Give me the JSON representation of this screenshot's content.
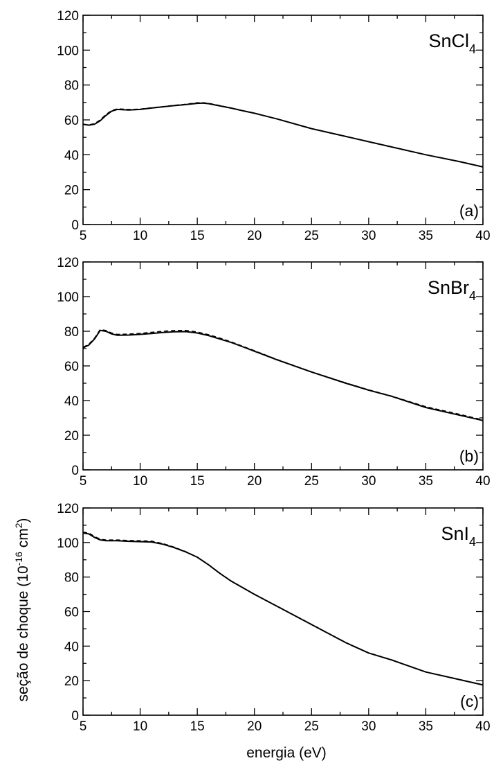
{
  "figure": {
    "xlabel": "energia (eV)",
    "ylabel_main": "seção de choque (10",
    "ylabel_sup1": "-16",
    "ylabel_mid": " cm",
    "ylabel_sup2": "2",
    "ylabel_end": ")"
  },
  "chart_data": [
    {
      "type": "line",
      "name_base": "SnCl",
      "name_sub": "4",
      "tag": "(a)",
      "xlim": [
        5,
        40
      ],
      "ylim": [
        0,
        120
      ],
      "x_ticks": [
        "5",
        "10",
        "15",
        "20",
        "25",
        "30",
        "35",
        "40"
      ],
      "y_ticks": [
        "0",
        "20",
        "40",
        "60",
        "80",
        "100",
        "120"
      ],
      "series": [
        {
          "style": "solid",
          "points": [
            [
              5,
              57.5
            ],
            [
              5.5,
              57
            ],
            [
              6,
              57.5
            ],
            [
              6.5,
              59.5
            ],
            [
              7,
              62.5
            ],
            [
              7.5,
              65
            ],
            [
              8,
              66
            ],
            [
              9,
              65.7
            ],
            [
              10,
              66
            ],
            [
              11,
              66.8
            ],
            [
              12,
              67.5
            ],
            [
              13,
              68.2
            ],
            [
              14,
              68.8
            ],
            [
              15,
              69.5
            ],
            [
              15.5,
              69.6
            ],
            [
              16,
              69.3
            ],
            [
              17,
              68
            ],
            [
              18,
              66.7
            ],
            [
              19,
              65.2
            ],
            [
              20,
              63.8
            ],
            [
              22,
              60.5
            ],
            [
              25,
              55
            ],
            [
              28,
              50.5
            ],
            [
              30,
              47.5
            ],
            [
              32,
              44.5
            ],
            [
              35,
              40
            ],
            [
              38,
              36
            ],
            [
              40,
              33
            ]
          ]
        },
        {
          "style": "dashed",
          "points": [
            [
              5,
              57.3
            ],
            [
              5.5,
              57.2
            ],
            [
              6,
              57.8
            ],
            [
              6.5,
              60
            ],
            [
              7,
              63
            ],
            [
              7.5,
              65.4
            ],
            [
              8,
              66.3
            ],
            [
              9,
              66
            ],
            [
              10,
              66.2
            ],
            [
              11,
              67
            ],
            [
              12,
              67.6
            ],
            [
              13,
              68.4
            ],
            [
              14,
              69
            ],
            [
              15,
              69.8
            ],
            [
              15.5,
              69.9
            ],
            [
              16,
              69.5
            ],
            [
              17,
              68.2
            ],
            [
              18,
              66.8
            ],
            [
              19,
              65.3
            ],
            [
              20,
              63.9
            ],
            [
              22,
              60.5
            ],
            [
              25,
              55
            ],
            [
              28,
              50.5
            ],
            [
              30,
              47.5
            ],
            [
              32,
              44.5
            ],
            [
              35,
              40
            ],
            [
              38,
              36
            ],
            [
              40,
              33
            ]
          ]
        }
      ]
    },
    {
      "type": "line",
      "name_base": "SnBr",
      "name_sub": "4",
      "tag": "(b)",
      "xlim": [
        5,
        40
      ],
      "ylim": [
        0,
        120
      ],
      "x_ticks": [
        "5",
        "10",
        "15",
        "20",
        "25",
        "30",
        "35",
        "40"
      ],
      "y_ticks": [
        "0",
        "20",
        "40",
        "60",
        "80",
        "100",
        "120"
      ],
      "series": [
        {
          "style": "solid",
          "points": [
            [
              5,
              70.5
            ],
            [
              5.5,
              72
            ],
            [
              6,
              75.5
            ],
            [
              6.5,
              80.5
            ],
            [
              7,
              80
            ],
            [
              7.5,
              78.5
            ],
            [
              8,
              77.7
            ],
            [
              9,
              77.8
            ],
            [
              10,
              78.2
            ],
            [
              11,
              78.7
            ],
            [
              12,
              79.3
            ],
            [
              13,
              79.7
            ],
            [
              14,
              79.8
            ],
            [
              15,
              79
            ],
            [
              16,
              77.5
            ],
            [
              17,
              75.5
            ],
            [
              18,
              73.5
            ],
            [
              19,
              71
            ],
            [
              20,
              68.5
            ],
            [
              22,
              63.5
            ],
            [
              25,
              56.5
            ],
            [
              28,
              50
            ],
            [
              30,
              46
            ],
            [
              32,
              42.5
            ],
            [
              35,
              36
            ],
            [
              38,
              31.5
            ],
            [
              40,
              28.5
            ]
          ]
        },
        {
          "style": "dashed",
          "points": [
            [
              5,
              70.8
            ],
            [
              5.5,
              72.5
            ],
            [
              6,
              76
            ],
            [
              6.5,
              81
            ],
            [
              7,
              80.5
            ],
            [
              7.5,
              79
            ],
            [
              8,
              78.2
            ],
            [
              9,
              78.4
            ],
            [
              10,
              78.8
            ],
            [
              11,
              79.4
            ],
            [
              12,
              80
            ],
            [
              13,
              80.5
            ],
            [
              14,
              80.5
            ],
            [
              15,
              79.6
            ],
            [
              16,
              78
            ],
            [
              17,
              76
            ],
            [
              18,
              73.8
            ],
            [
              19,
              71.3
            ],
            [
              20,
              68.8
            ],
            [
              22,
              63.7
            ],
            [
              25,
              56.6
            ],
            [
              28,
              50.2
            ],
            [
              30,
              46.2
            ],
            [
              32,
              42.6
            ],
            [
              35,
              36.5
            ],
            [
              38,
              32
            ],
            [
              40,
              28.8
            ]
          ]
        }
      ]
    },
    {
      "type": "line",
      "name_base": "SnI",
      "name_sub": "4",
      "tag": "(c)",
      "xlim": [
        5,
        40
      ],
      "ylim": [
        0,
        120
      ],
      "x_ticks": [
        "5",
        "10",
        "15",
        "20",
        "25",
        "30",
        "35",
        "40"
      ],
      "y_ticks": [
        "0",
        "20",
        "40",
        "60",
        "80",
        "100",
        "120"
      ],
      "series": [
        {
          "style": "solid",
          "points": [
            [
              5,
              105.5
            ],
            [
              5.5,
              105
            ],
            [
              6,
              103
            ],
            [
              6.5,
              101.5
            ],
            [
              7,
              101
            ],
            [
              8,
              101
            ],
            [
              9,
              100.7
            ],
            [
              10,
              100.5
            ],
            [
              11,
              100.3
            ],
            [
              12,
              99
            ],
            [
              13,
              97
            ],
            [
              14,
              94.5
            ],
            [
              15,
              91.5
            ],
            [
              16,
              87
            ],
            [
              17,
              82
            ],
            [
              18,
              77.5
            ],
            [
              20,
              70
            ],
            [
              22,
              63
            ],
            [
              25,
              52.5
            ],
            [
              28,
              42
            ],
            [
              30,
              36
            ],
            [
              32,
              32
            ],
            [
              35,
              25
            ],
            [
              38,
              20.5
            ],
            [
              40,
              17.5
            ]
          ]
        },
        {
          "style": "dashed",
          "points": [
            [
              5,
              106
            ],
            [
              5.5,
              105.5
            ],
            [
              6,
              103.5
            ],
            [
              6.5,
              102
            ],
            [
              7,
              101.5
            ],
            [
              8,
              101.5
            ],
            [
              9,
              101.2
            ],
            [
              10,
              101
            ],
            [
              11,
              100.8
            ],
            [
              12,
              99.4
            ],
            [
              13,
              97.3
            ],
            [
              14,
              94.7
            ],
            [
              15,
              91.6
            ],
            [
              16,
              87.1
            ],
            [
              17,
              82.1
            ],
            [
              18,
              77.6
            ],
            [
              20,
              70.1
            ],
            [
              22,
              63.1
            ],
            [
              25,
              52.6
            ],
            [
              28,
              42.1
            ],
            [
              30,
              36.1
            ],
            [
              32,
              32.1
            ],
            [
              35,
              25.1
            ],
            [
              38,
              20.6
            ],
            [
              40,
              17.6
            ]
          ]
        }
      ]
    }
  ]
}
